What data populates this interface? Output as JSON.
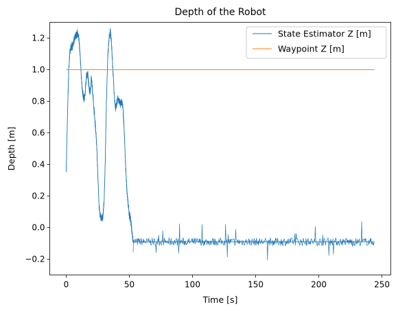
{
  "chart_data": {
    "type": "line",
    "title": "Depth of the Robot",
    "xlabel": "Time [s]",
    "ylabel": "Depth [m]",
    "xlim": [
      -13,
      257
    ],
    "ylim": [
      -0.3,
      1.3
    ],
    "xticks": [
      0,
      50,
      100,
      150,
      200,
      250
    ],
    "yticks": [
      -0.2,
      0.0,
      0.2,
      0.4,
      0.6,
      0.8,
      1.0,
      1.2
    ],
    "xtick_labels": [
      "0",
      "50",
      "100",
      "150",
      "200",
      "250"
    ],
    "ytick_labels": [
      "−0.2",
      "0.0",
      "0.2",
      "0.4",
      "0.6",
      "0.8",
      "1.0",
      "1.2"
    ],
    "grid": false,
    "legend_position": "top-right",
    "series": [
      {
        "name": "State Estimator Z [m]",
        "color": "#1f77b4",
        "x": [
          0,
          1,
          2,
          3,
          4,
          5,
          6,
          7,
          8,
          9,
          10,
          11,
          12,
          13,
          14,
          15,
          16,
          17,
          18,
          19,
          20,
          21,
          22,
          23,
          24,
          25,
          26,
          27,
          28,
          29,
          30,
          31,
          32,
          33,
          34,
          35,
          36,
          37,
          38,
          39,
          40,
          41,
          42,
          43,
          44,
          45,
          46,
          47,
          48,
          49,
          50,
          51,
          52,
          53,
          60,
          80,
          100,
          120,
          140,
          150,
          160,
          170,
          180,
          200,
          220,
          244
        ],
        "y": [
          0.35,
          0.7,
          1.0,
          1.12,
          1.15,
          1.14,
          1.18,
          1.2,
          1.22,
          1.24,
          1.2,
          1.1,
          0.95,
          0.85,
          0.82,
          0.85,
          0.95,
          0.98,
          0.9,
          0.85,
          0.95,
          0.85,
          0.75,
          0.65,
          0.55,
          0.35,
          0.15,
          0.07,
          0.06,
          0.07,
          0.15,
          0.45,
          0.85,
          1.1,
          1.2,
          1.24,
          1.15,
          1.0,
          0.85,
          0.75,
          0.78,
          0.82,
          0.8,
          0.78,
          0.8,
          0.75,
          0.6,
          0.4,
          0.25,
          0.15,
          0.08,
          0.05,
          -0.02,
          -0.09,
          -0.09,
          -0.09,
          -0.09,
          -0.09,
          -0.09,
          -0.09,
          -0.09,
          -0.09,
          -0.09,
          -0.09,
          -0.09,
          -0.09
        ]
      },
      {
        "name": "Waypoint Z [m]",
        "color": "#ff7f0e",
        "x": [
          0,
          244
        ],
        "y": [
          1.0,
          1.0
        ]
      }
    ]
  }
}
